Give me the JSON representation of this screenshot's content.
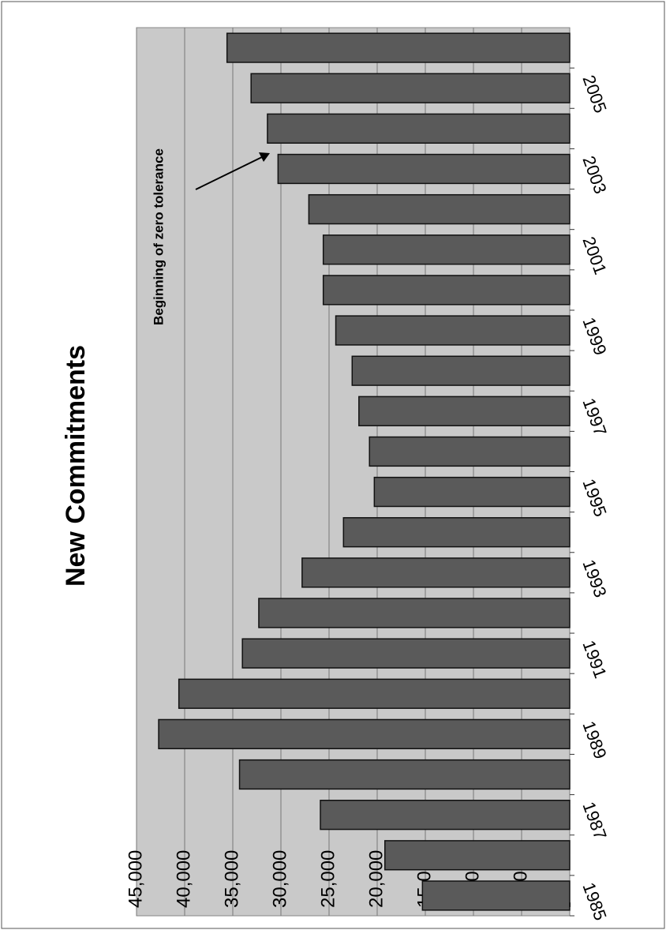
{
  "chart_data": {
    "type": "bar",
    "title": "New Commitments",
    "annotation": "Beginning of zero tolerance",
    "categories": [
      "1985",
      null,
      "1987",
      null,
      "1989",
      null,
      "1991",
      null,
      "1993",
      null,
      "1995",
      null,
      "1997",
      null,
      "1999",
      null,
      "2001",
      null,
      "2003",
      null,
      "2005",
      null
    ],
    "values": [
      15300,
      19200,
      25900,
      34300,
      42700,
      40600,
      34000,
      32300,
      27800,
      23500,
      20300,
      20800,
      21900,
      22600,
      24300,
      25600,
      25600,
      27100,
      30300,
      31400,
      33100,
      35600
    ],
    "color": "#5a5a5a",
    "ylim": [
      0,
      45000
    ],
    "yticks": [
      {
        "value": 0,
        "label": "-"
      },
      {
        "value": 5000,
        "label": "5,000"
      },
      {
        "value": 10000,
        "label": "10,000"
      },
      {
        "value": 15000,
        "label": "15,000"
      },
      {
        "value": 20000,
        "label": "20,000"
      },
      {
        "value": 25000,
        "label": "25,000"
      },
      {
        "value": 30000,
        "label": "30,000"
      },
      {
        "value": 35000,
        "label": "35,000"
      },
      {
        "value": 40000,
        "label": "40,000"
      },
      {
        "value": 45000,
        "label": "45,000"
      }
    ],
    "grid": true
  }
}
